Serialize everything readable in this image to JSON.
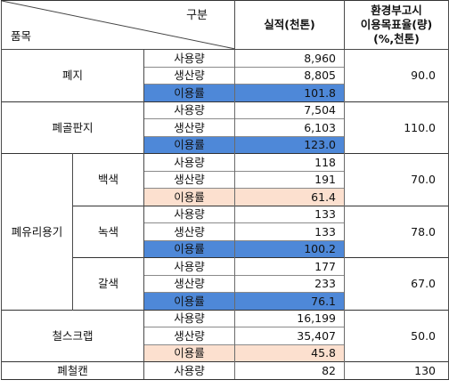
{
  "header": {
    "division": "구분",
    "item": "품목",
    "performance": "실적(천톤)",
    "target_line1": "환경부고시",
    "target_line2": "이용목표율(량)",
    "target_line3": "(%,천톤)"
  },
  "labels": {
    "use": "사용량",
    "produce": "생산량",
    "rate": "이용률"
  },
  "groups": {
    "paper": {
      "name": "폐지",
      "use": "8,960",
      "produce": "8,805",
      "rate": "101.8",
      "target": "90.0"
    },
    "board": {
      "name": "폐골판지",
      "use": "7,504",
      "produce": "6,103",
      "rate": "123.0",
      "target": "110.0"
    },
    "glass": {
      "name": "폐유리용기",
      "white": {
        "name": "백색",
        "use": "118",
        "produce": "191",
        "rate": "61.4",
        "target": "70.0"
      },
      "green": {
        "name": "녹색",
        "use": "133",
        "produce": "133",
        "rate": "100.2",
        "target": "78.0"
      },
      "brown": {
        "name": "갈색",
        "use": "177",
        "produce": "233",
        "rate": "76.1",
        "target": "67.0"
      }
    },
    "scrap": {
      "name": "철스크랩",
      "use": "16,199",
      "produce": "35,407",
      "rate": "45.8",
      "target": "50.0"
    },
    "can": {
      "name": "폐철캔",
      "use": "82",
      "target": "130"
    }
  },
  "colors": {
    "rate_above_target": "#4e88d8",
    "rate_below_target": "#fce0cf"
  }
}
